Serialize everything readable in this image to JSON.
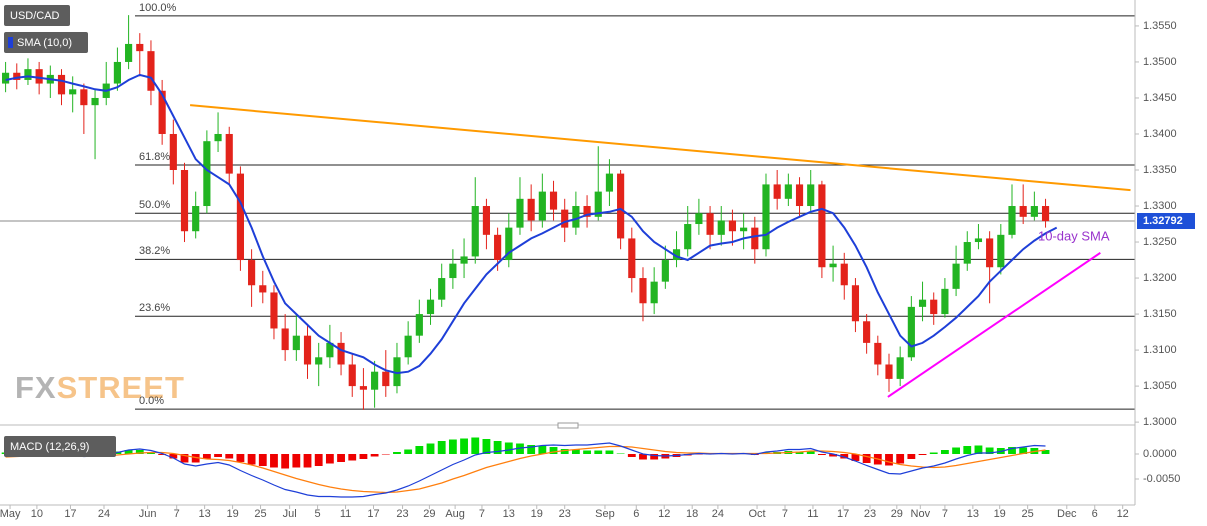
{
  "chart_data": {
    "type": "candlestick",
    "symbol": "USD/CAD",
    "indicator": "SMA (10,0)",
    "colors": {
      "up": "#22b422",
      "down": "#e3231b",
      "sma": "#1e3fd8"
    },
    "ohlc": [
      [
        1.347,
        1.35,
        1.3458,
        1.3485
      ],
      [
        1.3485,
        1.3498,
        1.3462,
        1.3475
      ],
      [
        1.3475,
        1.3505,
        1.3468,
        1.349
      ],
      [
        1.349,
        1.35,
        1.3455,
        1.347
      ],
      [
        1.347,
        1.3495,
        1.345,
        1.3482
      ],
      [
        1.3482,
        1.349,
        1.344,
        1.3455
      ],
      [
        1.3455,
        1.348,
        1.343,
        1.3462
      ],
      [
        1.3462,
        1.347,
        1.34,
        1.344
      ],
      [
        1.344,
        1.3462,
        1.3365,
        1.345
      ],
      [
        1.345,
        1.35,
        1.344,
        1.347
      ],
      [
        1.347,
        1.352,
        1.346,
        1.35
      ],
      [
        1.35,
        1.3565,
        1.349,
        1.3525
      ],
      [
        1.3525,
        1.354,
        1.348,
        1.3515
      ],
      [
        1.3515,
        1.353,
        1.344,
        1.346
      ],
      [
        1.346,
        1.3475,
        1.3385,
        1.34
      ],
      [
        1.34,
        1.342,
        1.333,
        1.335
      ],
      [
        1.335,
        1.336,
        1.325,
        1.3265
      ],
      [
        1.3265,
        1.332,
        1.3255,
        1.33
      ],
      [
        1.33,
        1.3405,
        1.329,
        1.339
      ],
      [
        1.339,
        1.343,
        1.3375,
        1.34
      ],
      [
        1.34,
        1.341,
        1.333,
        1.3345
      ],
      [
        1.3345,
        1.3355,
        1.321,
        1.3225
      ],
      [
        1.3225,
        1.324,
        1.316,
        1.319
      ],
      [
        1.319,
        1.321,
        1.3165,
        1.318
      ],
      [
        1.318,
        1.319,
        1.3115,
        1.313
      ],
      [
        1.313,
        1.315,
        1.3085,
        1.31
      ],
      [
        1.31,
        1.315,
        1.3085,
        1.312
      ],
      [
        1.312,
        1.3135,
        1.306,
        1.308
      ],
      [
        1.308,
        1.311,
        1.305,
        1.309
      ],
      [
        1.309,
        1.3135,
        1.3075,
        1.311
      ],
      [
        1.311,
        1.3125,
        1.3065,
        1.308
      ],
      [
        1.308,
        1.3095,
        1.3035,
        1.305
      ],
      [
        1.305,
        1.3075,
        1.3017,
        1.3045
      ],
      [
        1.3045,
        1.3085,
        1.302,
        1.307
      ],
      [
        1.307,
        1.31,
        1.3035,
        1.305
      ],
      [
        1.305,
        1.311,
        1.304,
        1.309
      ],
      [
        1.309,
        1.314,
        1.308,
        1.312
      ],
      [
        1.312,
        1.317,
        1.311,
        1.315
      ],
      [
        1.315,
        1.3185,
        1.3135,
        1.317
      ],
      [
        1.317,
        1.322,
        1.316,
        1.32
      ],
      [
        1.32,
        1.324,
        1.3185,
        1.322
      ],
      [
        1.322,
        1.3255,
        1.32,
        1.323
      ],
      [
        1.323,
        1.334,
        1.322,
        1.33
      ],
      [
        1.33,
        1.331,
        1.324,
        1.326
      ],
      [
        1.326,
        1.327,
        1.321,
        1.3225
      ],
      [
        1.3225,
        1.329,
        1.3215,
        1.327
      ],
      [
        1.327,
        1.334,
        1.326,
        1.331
      ],
      [
        1.331,
        1.333,
        1.3265,
        1.328
      ],
      [
        1.328,
        1.3345,
        1.327,
        1.332
      ],
      [
        1.332,
        1.3335,
        1.328,
        1.3295
      ],
      [
        1.3295,
        1.331,
        1.325,
        1.327
      ],
      [
        1.327,
        1.332,
        1.326,
        1.33
      ],
      [
        1.33,
        1.3315,
        1.327,
        1.3285
      ],
      [
        1.3285,
        1.3383,
        1.328,
        1.332
      ],
      [
        1.332,
        1.3365,
        1.33,
        1.3345
      ],
      [
        1.3345,
        1.335,
        1.324,
        1.3255
      ],
      [
        1.3255,
        1.327,
        1.318,
        1.32
      ],
      [
        1.32,
        1.3215,
        1.314,
        1.3165
      ],
      [
        1.3165,
        1.3215,
        1.315,
        1.3195
      ],
      [
        1.3195,
        1.3245,
        1.3185,
        1.3225
      ],
      [
        1.3225,
        1.3265,
        1.3215,
        1.324
      ],
      [
        1.324,
        1.33,
        1.323,
        1.3275
      ],
      [
        1.3275,
        1.331,
        1.326,
        1.329
      ],
      [
        1.329,
        1.33,
        1.324,
        1.326
      ],
      [
        1.326,
        1.33,
        1.3245,
        1.328
      ],
      [
        1.328,
        1.3295,
        1.3245,
        1.3265
      ],
      [
        1.3265,
        1.329,
        1.324,
        1.327
      ],
      [
        1.327,
        1.3285,
        1.322,
        1.324
      ],
      [
        1.324,
        1.3345,
        1.323,
        1.333
      ],
      [
        1.333,
        1.335,
        1.3295,
        1.331
      ],
      [
        1.331,
        1.3345,
        1.33,
        1.333
      ],
      [
        1.333,
        1.334,
        1.3285,
        1.33
      ],
      [
        1.33,
        1.335,
        1.329,
        1.333
      ],
      [
        1.333,
        1.3335,
        1.32,
        1.3215
      ],
      [
        1.3215,
        1.3245,
        1.3195,
        1.322
      ],
      [
        1.322,
        1.3235,
        1.317,
        1.319
      ],
      [
        1.319,
        1.32,
        1.3125,
        1.314
      ],
      [
        1.314,
        1.315,
        1.3095,
        1.311
      ],
      [
        1.311,
        1.312,
        1.3065,
        1.308
      ],
      [
        1.308,
        1.3095,
        1.3042,
        1.306
      ],
      [
        1.306,
        1.3105,
        1.305,
        1.309
      ],
      [
        1.309,
        1.3175,
        1.3085,
        1.316
      ],
      [
        1.316,
        1.3195,
        1.314,
        1.317
      ],
      [
        1.317,
        1.318,
        1.3135,
        1.315
      ],
      [
        1.315,
        1.32,
        1.3145,
        1.3185
      ],
      [
        1.3185,
        1.3245,
        1.3175,
        1.322
      ],
      [
        1.322,
        1.3265,
        1.321,
        1.325
      ],
      [
        1.325,
        1.3275,
        1.324,
        1.3255
      ],
      [
        1.3255,
        1.3265,
        1.3165,
        1.3215
      ],
      [
        1.3215,
        1.3275,
        1.3205,
        1.326
      ],
      [
        1.326,
        1.333,
        1.3255,
        1.33
      ],
      [
        1.33,
        1.333,
        1.3275,
        1.3285
      ],
      [
        1.3285,
        1.332,
        1.328,
        1.33
      ],
      [
        1.33,
        1.331,
        1.327,
        1.3279
      ]
    ],
    "sma": [
      1.3475,
      1.3478,
      1.348,
      1.3478,
      1.3476,
      1.3474,
      1.347,
      1.3466,
      1.3462,
      1.346,
      1.3465,
      1.3475,
      1.3482,
      1.3478,
      1.3455,
      1.3425,
      1.3395,
      1.3365,
      1.335,
      1.334,
      1.333,
      1.3305,
      1.327,
      1.323,
      1.3195,
      1.3165,
      1.315,
      1.3135,
      1.312,
      1.311,
      1.31,
      1.3095,
      1.309,
      1.308,
      1.3072,
      1.3068,
      1.307,
      1.3078,
      1.3095,
      1.3115,
      1.314,
      1.3165,
      1.3185,
      1.3205,
      1.322,
      1.3235,
      1.3245,
      1.3255,
      1.3262,
      1.327,
      1.3278,
      1.3282,
      1.3288,
      1.329,
      1.3292,
      1.3296,
      1.3285,
      1.3265,
      1.325,
      1.324,
      1.323,
      1.3225,
      1.3235,
      1.3245,
      1.3248,
      1.325,
      1.3255,
      1.3258,
      1.326,
      1.327,
      1.3278,
      1.3285,
      1.3292,
      1.3296,
      1.329,
      1.327,
      1.3245,
      1.3215,
      1.318,
      1.315,
      1.312,
      1.3105,
      1.311,
      1.312,
      1.3132,
      1.3145,
      1.316,
      1.3175,
      1.3195,
      1.321,
      1.3225,
      1.324,
      1.3252,
      1.3262,
      1.327
    ],
    "xlim": [
      -0.5,
      101
    ],
    "xticks": [
      {
        "value": 0.4,
        "label": "May"
      },
      {
        "value": 2.8,
        "label": "10"
      },
      {
        "value": 5.8,
        "label": "17"
      },
      {
        "value": 8.8,
        "label": "24"
      },
      {
        "value": 12.7,
        "label": "Jun"
      },
      {
        "value": 15.3,
        "label": "7"
      },
      {
        "value": 17.8,
        "label": "13"
      },
      {
        "value": 20.3,
        "label": "19"
      },
      {
        "value": 22.8,
        "label": "25"
      },
      {
        "value": 25.4,
        "label": "Jul"
      },
      {
        "value": 27.9,
        "label": "5"
      },
      {
        "value": 30.4,
        "label": "11"
      },
      {
        "value": 32.9,
        "label": "17"
      },
      {
        "value": 35.5,
        "label": "23"
      },
      {
        "value": 37.9,
        "label": "29"
      },
      {
        "value": 40.2,
        "label": "Aug"
      },
      {
        "value": 42.6,
        "label": "7"
      },
      {
        "value": 45.0,
        "label": "13"
      },
      {
        "value": 47.5,
        "label": "19"
      },
      {
        "value": 50.0,
        "label": "23"
      },
      {
        "value": 53.6,
        "label": "Sep"
      },
      {
        "value": 56.4,
        "label": "6"
      },
      {
        "value": 58.9,
        "label": "12"
      },
      {
        "value": 61.4,
        "label": "18"
      },
      {
        "value": 63.7,
        "label": "24"
      },
      {
        "value": 67.2,
        "label": "Oct"
      },
      {
        "value": 69.7,
        "label": "7"
      },
      {
        "value": 72.2,
        "label": "11"
      },
      {
        "value": 74.9,
        "label": "17"
      },
      {
        "value": 77.3,
        "label": "23"
      },
      {
        "value": 79.7,
        "label": "29"
      },
      {
        "value": 81.8,
        "label": "Nov"
      },
      {
        "value": 84.0,
        "label": "7"
      },
      {
        "value": 86.5,
        "label": "13"
      },
      {
        "value": 88.9,
        "label": "19"
      },
      {
        "value": 91.4,
        "label": "25"
      },
      {
        "value": 94.9,
        "label": "Dec"
      },
      {
        "value": 97.4,
        "label": "6"
      },
      {
        "value": 99.9,
        "label": "12"
      }
    ],
    "ylim": [
      1.2996,
      1.3586
    ],
    "yticks": [
      {
        "value": 1.3,
        "label": "1.3000"
      },
      {
        "value": 1.305,
        "label": "1.3050"
      },
      {
        "value": 1.31,
        "label": "1.3100"
      },
      {
        "value": 1.315,
        "label": "1.3150"
      },
      {
        "value": 1.32,
        "label": "1.3200"
      },
      {
        "value": 1.325,
        "label": "1.3250"
      },
      {
        "value": 1.33,
        "label": "1.3300"
      },
      {
        "value": 1.335,
        "label": "1.3350"
      },
      {
        "value": 1.34,
        "label": "1.3400"
      },
      {
        "value": 1.345,
        "label": "1.3450"
      },
      {
        "value": 1.35,
        "label": "1.3500"
      },
      {
        "value": 1.355,
        "label": "1.3550"
      }
    ],
    "last_price": 1.32792,
    "fib_levels": [
      {
        "label": "100.0%",
        "value": 1.3564
      },
      {
        "label": "61.8%",
        "value": 1.3357
      },
      {
        "label": "50.0%",
        "value": 1.329
      },
      {
        "label": "38.2%",
        "value": 1.3226
      },
      {
        "label": "23.6%",
        "value": 1.3147
      },
      {
        "label": "0.0%",
        "value": 1.3018
      }
    ],
    "trendlines": [
      {
        "color": "#ff9a00",
        "points": [
          [
            16.5,
            1.344
          ],
          [
            100.6,
            1.3322
          ]
        ]
      },
      {
        "color": "#ff00ff",
        "points": [
          [
            78.9,
            1.3035
          ],
          [
            97.9,
            1.3235
          ]
        ]
      }
    ],
    "annotation": "10-day SMA",
    "watermark": {
      "prefix": "FX",
      "suffix": "STREET"
    },
    "macd": {
      "label": "MACD (12,26,9)",
      "colors": {
        "macd": "#1e3fd8",
        "signal": "#ff7f0e",
        "up": "#00dd00",
        "down": "#ee0000"
      },
      "macd_line": [
        -0.0003,
        -0.0002,
        0.0,
        0.0,
        0.0001,
        -0.0002,
        -0.0003,
        -0.0005,
        -0.0004,
        -0.0002,
        0.0003,
        0.0008,
        0.001,
        0.0007,
        0.0001,
        -0.0008,
        -0.002,
        -0.0024,
        -0.002,
        -0.0017,
        -0.0022,
        -0.0033,
        -0.0043,
        -0.0052,
        -0.0062,
        -0.0071,
        -0.0076,
        -0.0082,
        -0.0085,
        -0.0085,
        -0.0086,
        -0.0086,
        -0.0085,
        -0.0081,
        -0.0078,
        -0.0072,
        -0.0064,
        -0.0054,
        -0.0043,
        -0.0032,
        -0.0021,
        -0.0012,
        -0.0002,
        0.0003,
        0.0005,
        0.0008,
        0.0012,
        0.0014,
        0.0017,
        0.0018,
        0.0017,
        0.0018,
        0.0018,
        0.002,
        0.0022,
        0.0016,
        0.0008,
        0.0,
        -0.0003,
        -0.0004,
        -0.0003,
        -0.0001,
        0.0001,
        0.0,
        0.0001,
        0.0,
        0.0001,
        -0.0001,
        0.0004,
        0.0006,
        0.0009,
        0.0009,
        0.0011,
        0.0004,
        0.0,
        -0.0006,
        -0.0014,
        -0.0023,
        -0.0031,
        -0.0039,
        -0.004,
        -0.0034,
        -0.0028,
        -0.0024,
        -0.0018,
        -0.001,
        -0.0003,
        0.0002,
        0.0002,
        0.0005,
        0.0011,
        0.0014,
        0.0017,
        0.0016
      ],
      "signal": [
        -0.0006,
        -0.0005,
        -0.0004,
        -0.0003,
        -0.0002,
        -0.0002,
        -0.0002,
        -0.0003,
        -0.0003,
        -0.0003,
        -0.0002,
        0.0,
        0.0002,
        0.0003,
        0.0003,
        0.0001,
        -0.0003,
        -0.0007,
        -0.001,
        -0.0011,
        -0.0013,
        -0.0017,
        -0.0022,
        -0.0028,
        -0.0035,
        -0.0042,
        -0.0049,
        -0.0055,
        -0.0061,
        -0.0066,
        -0.007,
        -0.0073,
        -0.0075,
        -0.0076,
        -0.0077,
        -0.0076,
        -0.0073,
        -0.007,
        -0.0064,
        -0.0058,
        -0.005,
        -0.0043,
        -0.0035,
        -0.0027,
        -0.0021,
        -0.0015,
        -0.0009,
        -0.0004,
        0.0,
        0.0004,
        0.0007,
        0.0009,
        0.0011,
        0.0013,
        0.0015,
        0.0015,
        0.0014,
        0.0011,
        0.0008,
        0.0005,
        0.0003,
        0.0002,
        0.0002,
        0.0001,
        0.0001,
        0.0001,
        0.0001,
        0.0001,
        0.0001,
        0.0002,
        0.0003,
        0.0004,
        0.0006,
        0.0006,
        0.0005,
        0.0003,
        0.0,
        -0.0005,
        -0.001,
        -0.0016,
        -0.0021,
        -0.0024,
        -0.0026,
        -0.0027,
        -0.0026,
        -0.0023,
        -0.0019,
        -0.0015,
        -0.0011,
        -0.0007,
        -0.0003,
        0.0001,
        0.0005,
        0.0008
      ],
      "histogram": [
        0.0003,
        0.0003,
        0.0004,
        0.0003,
        0.0003,
        0.0,
        -0.0001,
        -0.0002,
        -0.0001,
        0.0001,
        0.0005,
        0.0008,
        0.0008,
        0.0004,
        -0.0002,
        -0.0009,
        -0.0017,
        -0.0017,
        -0.001,
        -0.0006,
        -0.0009,
        -0.0016,
        -0.0021,
        -0.0024,
        -0.0027,
        -0.0029,
        -0.0027,
        -0.0027,
        -0.0024,
        -0.0019,
        -0.0016,
        -0.0013,
        -0.001,
        -0.0005,
        -0.0001,
        0.0004,
        0.0009,
        0.0016,
        0.0021,
        0.0026,
        0.0029,
        0.0031,
        0.0033,
        0.003,
        0.0026,
        0.0023,
        0.0021,
        0.0018,
        0.0017,
        0.0014,
        0.001,
        0.0009,
        0.0007,
        0.0007,
        0.0007,
        0.0001,
        -0.0006,
        -0.0011,
        -0.0011,
        -0.0009,
        -0.0006,
        -0.0003,
        -0.0001,
        -0.0001,
        0.0,
        -0.0001,
        0.0,
        -0.0002,
        0.0003,
        0.0004,
        0.0006,
        0.0005,
        0.0005,
        -0.0002,
        -0.0005,
        -0.0009,
        -0.0014,
        -0.0018,
        -0.0021,
        -0.0023,
        -0.0019,
        -0.001,
        -0.0002,
        0.0003,
        0.0008,
        0.0013,
        0.0016,
        0.0017,
        0.0013,
        0.0012,
        0.0014,
        0.0013,
        0.0012,
        0.0008
      ],
      "ylim": [
        -0.0102,
        0.0048
      ],
      "yticks": [
        {
          "value": 0,
          "label": "0.0000"
        },
        {
          "value": -0.005,
          "label": "-0.0050"
        }
      ]
    }
  }
}
